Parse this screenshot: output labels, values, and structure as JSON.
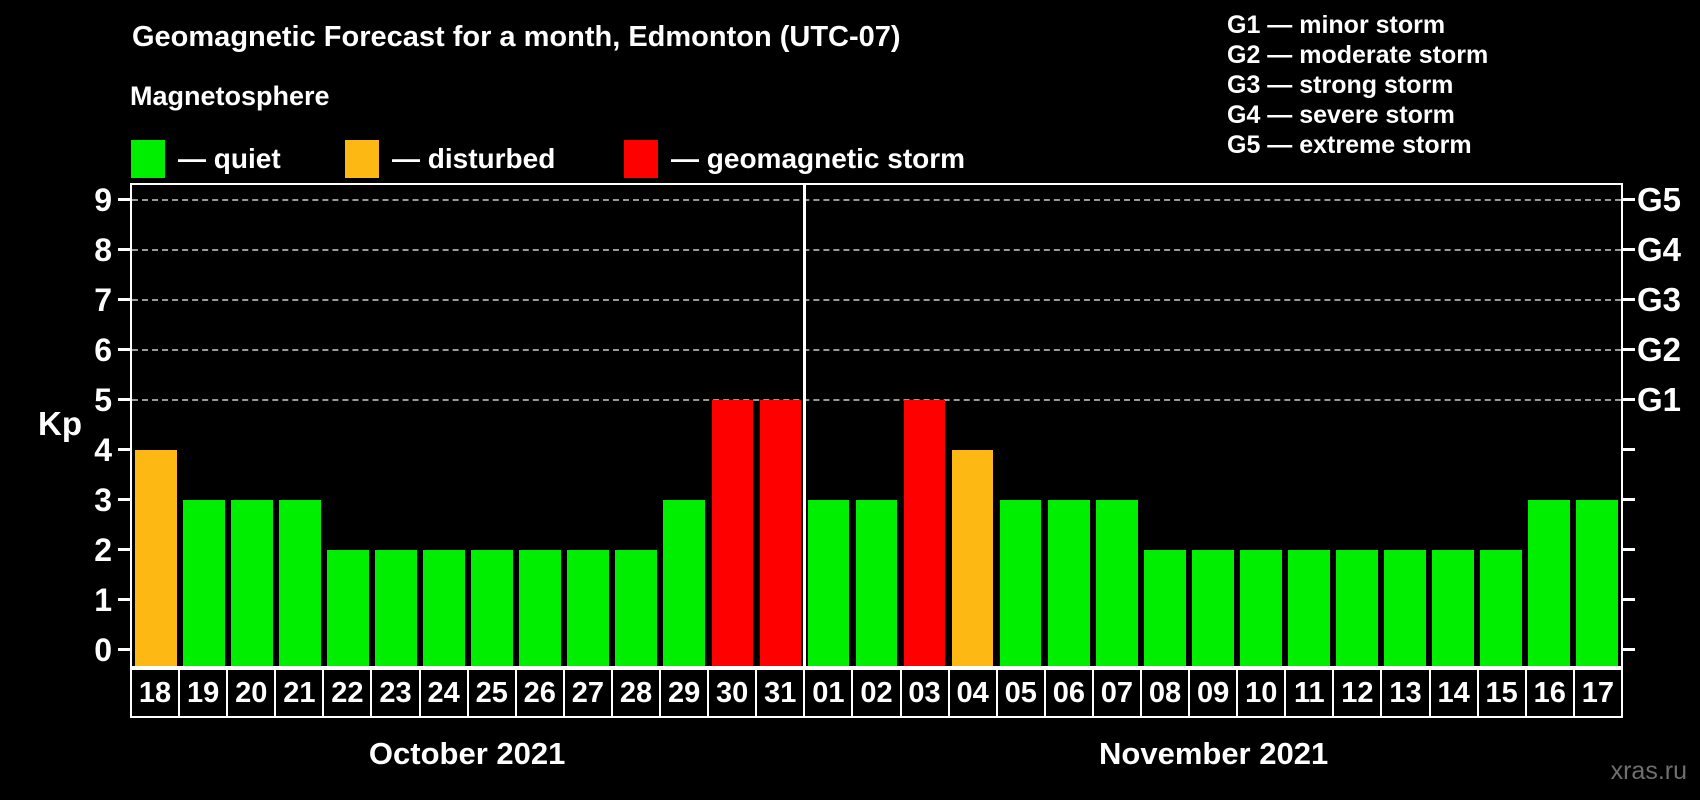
{
  "title": "Geomagnetic Forecast for a month, Edmonton (UTC-07)",
  "subtitle": "Magnetosphere",
  "legend": {
    "items": [
      {
        "name": "quiet",
        "label": "— quiet",
        "color": "#00ee00"
      },
      {
        "name": "disturbed",
        "label": "— disturbed",
        "color": "#fdb813"
      },
      {
        "name": "storm",
        "label": "— geomagnetic storm",
        "color": "#ff0000"
      }
    ]
  },
  "storm_scale_legend": [
    "G1 — minor storm",
    "G2 — moderate storm",
    "G3 — strong storm",
    "G4 — severe storm",
    "G5 — extreme storm"
  ],
  "watermark": "xras.ru",
  "chart_data": {
    "type": "bar",
    "title": "Geomagnetic Forecast for a month, Edmonton (UTC-07)",
    "ylabel": "Kp",
    "ylim": [
      0,
      9
    ],
    "yticks": [
      0,
      1,
      2,
      3,
      4,
      5,
      6,
      7,
      8,
      9
    ],
    "gridlines_at": [
      5,
      6,
      7,
      8,
      9
    ],
    "grid_style": "dashed horizontal lines at Kp 5–9",
    "right_axis_labels": [
      {
        "label": "G1",
        "kp": 5
      },
      {
        "label": "G2",
        "kp": 6
      },
      {
        "label": "G3",
        "kp": 7
      },
      {
        "label": "G4",
        "kp": 8
      },
      {
        "label": "G5",
        "kp": 9
      }
    ],
    "colors": {
      "quiet": "#00ee00",
      "disturbed": "#fdb813",
      "storm": "#ff0000"
    },
    "months": [
      {
        "label": "October 2021",
        "days": [
          {
            "date": "18",
            "kp": 4,
            "level": "disturbed"
          },
          {
            "date": "19",
            "kp": 3,
            "level": "quiet"
          },
          {
            "date": "20",
            "kp": 3,
            "level": "quiet"
          },
          {
            "date": "21",
            "kp": 3,
            "level": "quiet"
          },
          {
            "date": "22",
            "kp": 2,
            "level": "quiet"
          },
          {
            "date": "23",
            "kp": 2,
            "level": "quiet"
          },
          {
            "date": "24",
            "kp": 2,
            "level": "quiet"
          },
          {
            "date": "25",
            "kp": 2,
            "level": "quiet"
          },
          {
            "date": "26",
            "kp": 2,
            "level": "quiet"
          },
          {
            "date": "27",
            "kp": 2,
            "level": "quiet"
          },
          {
            "date": "28",
            "kp": 2,
            "level": "quiet"
          },
          {
            "date": "29",
            "kp": 3,
            "level": "quiet"
          },
          {
            "date": "30",
            "kp": 5,
            "level": "storm"
          },
          {
            "date": "31",
            "kp": 5,
            "level": "storm"
          }
        ]
      },
      {
        "label": "November 2021",
        "days": [
          {
            "date": "01",
            "kp": 3,
            "level": "quiet"
          },
          {
            "date": "02",
            "kp": 3,
            "level": "quiet"
          },
          {
            "date": "03",
            "kp": 5,
            "level": "storm"
          },
          {
            "date": "04",
            "kp": 4,
            "level": "disturbed"
          },
          {
            "date": "05",
            "kp": 3,
            "level": "quiet"
          },
          {
            "date": "06",
            "kp": 3,
            "level": "quiet"
          },
          {
            "date": "07",
            "kp": 3,
            "level": "quiet"
          },
          {
            "date": "08",
            "kp": 2,
            "level": "quiet"
          },
          {
            "date": "09",
            "kp": 2,
            "level": "quiet"
          },
          {
            "date": "10",
            "kp": 2,
            "level": "quiet"
          },
          {
            "date": "11",
            "kp": 2,
            "level": "quiet"
          },
          {
            "date": "12",
            "kp": 2,
            "level": "quiet"
          },
          {
            "date": "13",
            "kp": 2,
            "level": "quiet"
          },
          {
            "date": "14",
            "kp": 2,
            "level": "quiet"
          },
          {
            "date": "15",
            "kp": 2,
            "level": "quiet"
          },
          {
            "date": "16",
            "kp": 3,
            "level": "quiet"
          },
          {
            "date": "17",
            "kp": 3,
            "level": "quiet"
          }
        ]
      }
    ]
  }
}
